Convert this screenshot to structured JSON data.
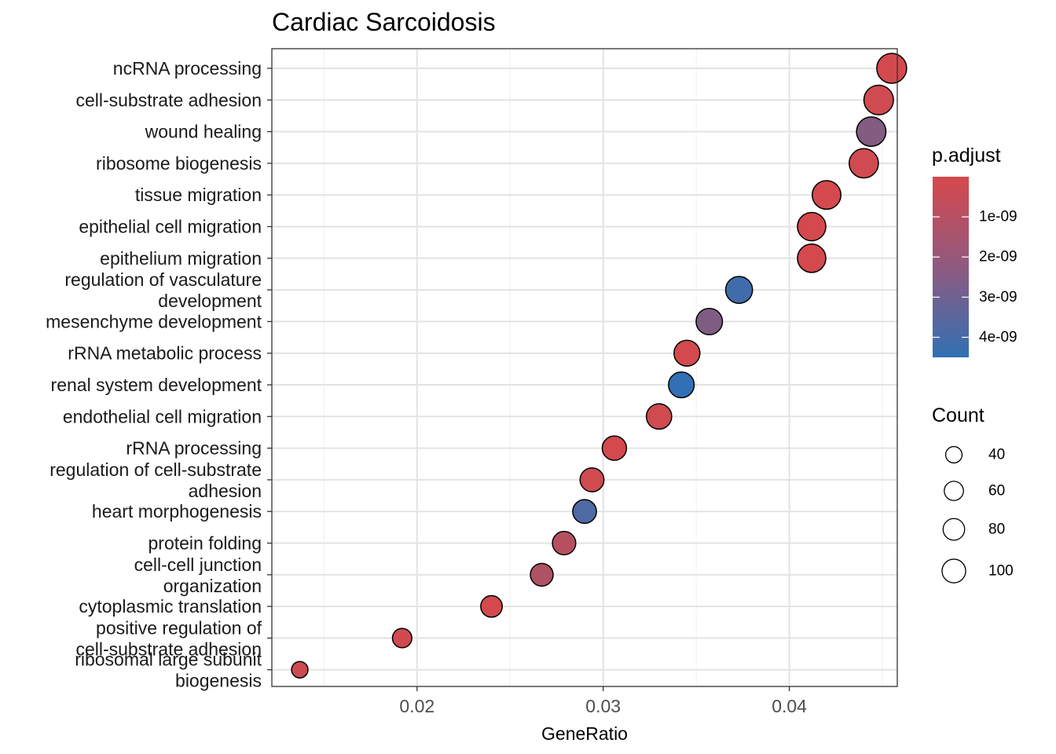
{
  "chart_data": {
    "type": "scatter",
    "title": "Cardiac Sarcoidosis",
    "xlabel": "GeneRatio",
    "ylabel": "",
    "xlim": [
      0.0122,
      0.0458
    ],
    "x_ticks": [
      "0.02",
      "0.03",
      "0.04"
    ],
    "x_tick_values": [
      0.02,
      0.03,
      0.04
    ],
    "grid": true,
    "legend_position": "right",
    "color_legend": {
      "title": "p.adjust",
      "labels": [
        "1e-09",
        "2e-09",
        "3e-09",
        "4e-09"
      ],
      "values": [
        1e-09,
        2e-09,
        3e-09,
        4e-09
      ],
      "low_color": "#d7484c",
      "high_color": "#3170b4",
      "min": 0,
      "max": 4.5e-09
    },
    "size_legend": {
      "title": "Count",
      "labels": [
        "40",
        "60",
        "80",
        "100"
      ],
      "values": [
        40,
        60,
        80,
        100
      ]
    },
    "points": [
      {
        "term": [
          "ncRNA processing"
        ],
        "x": 0.0455,
        "count": 100,
        "p_adjust": 1e-10
      },
      {
        "term": [
          "cell-substrate adhesion"
        ],
        "x": 0.0448,
        "count": 98,
        "p_adjust": 2e-10
      },
      {
        "term": [
          "wound healing"
        ],
        "x": 0.0444,
        "count": 97,
        "p_adjust": 2.3e-09
      },
      {
        "term": [
          "ribosome biogenesis"
        ],
        "x": 0.044,
        "count": 96,
        "p_adjust": 2e-10
      },
      {
        "term": [
          "tissue migration"
        ],
        "x": 0.042,
        "count": 92,
        "p_adjust": 1e-10
      },
      {
        "term": [
          "epithelial cell migration"
        ],
        "x": 0.0412,
        "count": 90,
        "p_adjust": 1e-10
      },
      {
        "term": [
          "epithelium migration"
        ],
        "x": 0.0412,
        "count": 90,
        "p_adjust": 1e-10
      },
      {
        "term": [
          "regulation of vasculature",
          "development"
        ],
        "x": 0.0373,
        "count": 81,
        "p_adjust": 4.1e-09
      },
      {
        "term": [
          "mesenchyme development"
        ],
        "x": 0.0357,
        "count": 78,
        "p_adjust": 2.4e-09
      },
      {
        "term": [
          "rRNA metabolic process"
        ],
        "x": 0.0345,
        "count": 75,
        "p_adjust": 1e-10
      },
      {
        "term": [
          "renal system development"
        ],
        "x": 0.0342,
        "count": 74,
        "p_adjust": 4.5e-09
      },
      {
        "term": [
          "endothelial cell migration"
        ],
        "x": 0.033,
        "count": 72,
        "p_adjust": 2e-10
      },
      {
        "term": [
          "rRNA processing"
        ],
        "x": 0.0306,
        "count": 66,
        "p_adjust": 1e-10
      },
      {
        "term": [
          "regulation of cell-substrate",
          "adhesion"
        ],
        "x": 0.0294,
        "count": 64,
        "p_adjust": 2e-10
      },
      {
        "term": [
          "heart morphogenesis"
        ],
        "x": 0.029,
        "count": 63,
        "p_adjust": 3.7e-09
      },
      {
        "term": [
          "protein folding"
        ],
        "x": 0.0279,
        "count": 61,
        "p_adjust": 9e-10
      },
      {
        "term": [
          "cell-cell junction",
          "organization"
        ],
        "x": 0.0267,
        "count": 58,
        "p_adjust": 1.1e-09
      },
      {
        "term": [
          "cytoplasmic translation"
        ],
        "x": 0.024,
        "count": 52,
        "p_adjust": 1e-10
      },
      {
        "term": [
          "positive regulation of",
          "cell-substrate adhesion"
        ],
        "x": 0.0192,
        "count": 42,
        "p_adjust": 2e-10
      },
      {
        "term": [
          "ribosomal large subunit",
          "biogenesis"
        ],
        "x": 0.0137,
        "count": 30,
        "p_adjust": 3e-10
      }
    ]
  }
}
